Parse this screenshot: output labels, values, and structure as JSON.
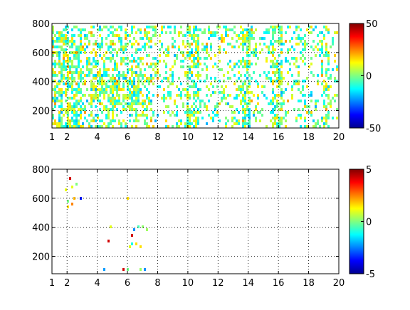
{
  "chart_data": [
    {
      "type": "heatmap",
      "title": "",
      "xlabel": "",
      "ylabel": "",
      "xlim": [
        1,
        20
      ],
      "ylim": [
        80,
        800
      ],
      "xticks": [
        "1",
        "2",
        "4",
        "6",
        "8",
        "10",
        "12",
        "14",
        "16",
        "18",
        "20"
      ],
      "yticks": [
        "200",
        "400",
        "600",
        "800"
      ],
      "grid": true,
      "colormap": "jet",
      "colorbar": {
        "min": -50,
        "max": 50,
        "ticks": [
          "50",
          "0",
          "-50"
        ]
      },
      "density": "dense",
      "clusters": [
        {
          "x": [
            1.0,
            3.0
          ],
          "y": [
            80,
            800
          ],
          "weight": 0.7
        },
        {
          "x": [
            3.0,
            8.0
          ],
          "y": [
            80,
            800
          ],
          "weight": 0.45
        },
        {
          "x": [
            3.5,
            7.5
          ],
          "y": [
            250,
            450
          ],
          "weight": 0.8
        },
        {
          "x": [
            8.0,
            20.0
          ],
          "y": [
            80,
            800
          ],
          "weight": 0.3
        },
        {
          "x": [
            10.0,
            10.8
          ],
          "y": [
            80,
            800
          ],
          "weight": 0.7
        },
        {
          "x": [
            13.6,
            14.2
          ],
          "y": [
            80,
            800
          ],
          "weight": 0.8
        },
        {
          "x": [
            15.6,
            16.3
          ],
          "y": [
            80,
            800
          ],
          "weight": 0.65
        },
        {
          "x": [
            18.9,
            19.4
          ],
          "y": [
            80,
            800
          ],
          "weight": 0.6
        }
      ]
    },
    {
      "type": "heatmap",
      "title": "",
      "xlabel": "",
      "ylabel": "",
      "xlim": [
        1,
        20
      ],
      "ylim": [
        80,
        800
      ],
      "xticks": [
        "1",
        "2",
        "4",
        "6",
        "8",
        "10",
        "12",
        "14",
        "16",
        "18",
        "20"
      ],
      "yticks": [
        "200",
        "400",
        "600",
        "800"
      ],
      "grid": true,
      "colormap": "jet",
      "colorbar": {
        "min": -5,
        "max": 5,
        "ticks": [
          "5",
          "0",
          "-5"
        ]
      },
      "density": "sparse",
      "clusters": [
        {
          "x": [
            1.8,
            3.2
          ],
          "y": [
            500,
            800
          ],
          "weight": 0.25
        },
        {
          "x": [
            4.2,
            7.5
          ],
          "y": [
            260,
            420
          ],
          "weight": 0.35
        },
        {
          "x": [
            5.9,
            6.1
          ],
          "y": [
            150,
            700
          ],
          "weight": 0.4
        },
        {
          "x": [
            4.3,
            7.5
          ],
          "y": [
            100,
            125
          ],
          "weight": 0.6
        }
      ]
    }
  ]
}
